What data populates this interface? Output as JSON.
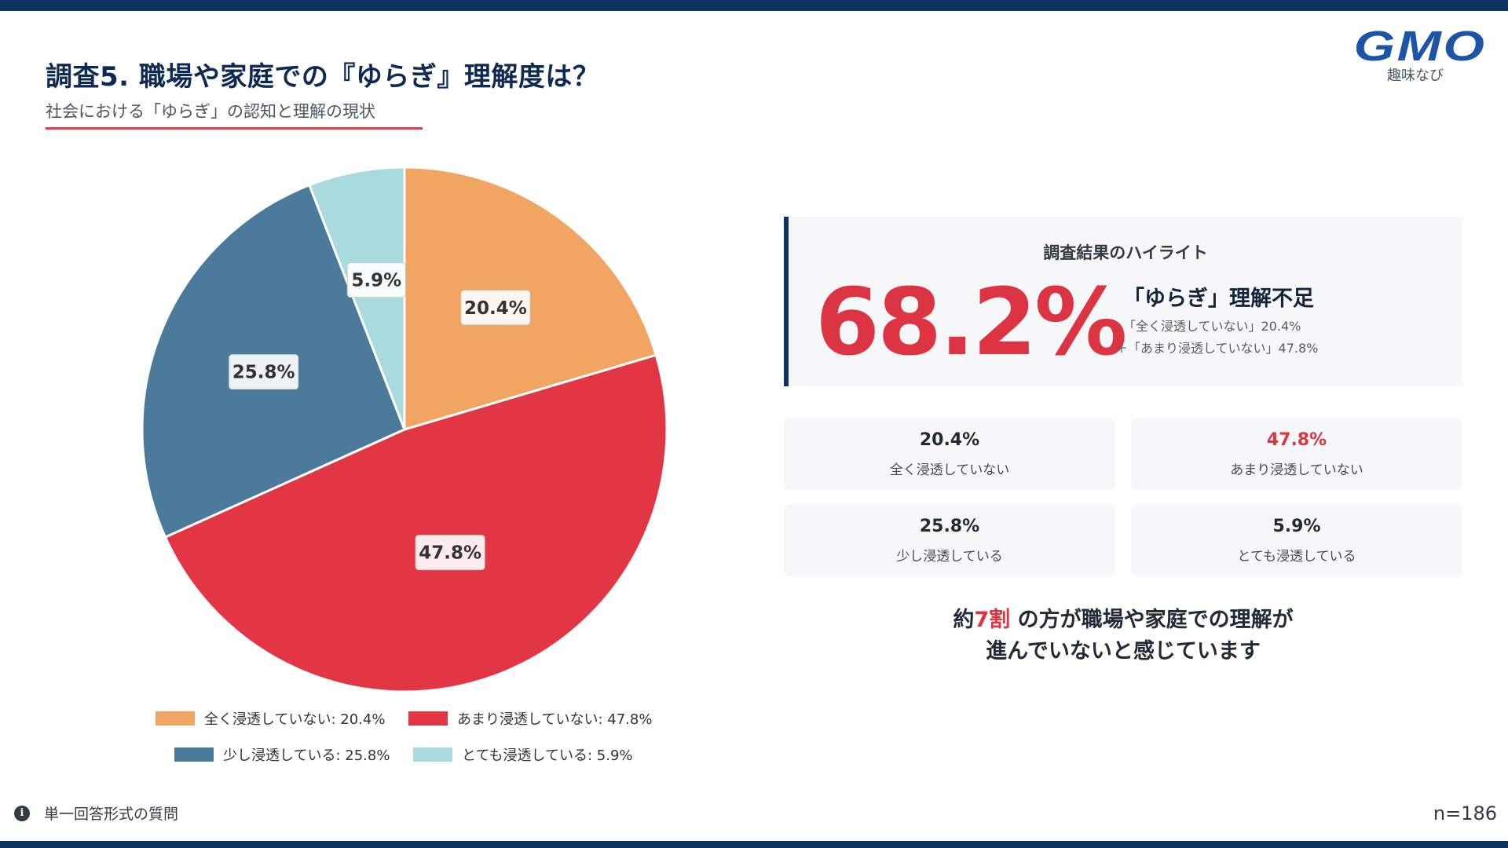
{
  "header": {
    "title": "調査5. 職場や家庭での『ゆらぎ』理解度は？",
    "subtitle": "社会における「ゆらぎ」の認知と理解の現状"
  },
  "logo": {
    "mark": "GMO",
    "sub": "趣味なび"
  },
  "colors": {
    "navy": "#0f3461",
    "accent_red": "#dd3444",
    "orange": "#f2a462",
    "red": "#e23644",
    "steel_blue": "#4b7a9a",
    "light_teal": "#a9dadd"
  },
  "chart_data": {
    "type": "pie",
    "title": "",
    "start": "12 o'clock, clockwise",
    "slices": [
      {
        "label": "全く浸透していない",
        "value": 20.4,
        "display": "20.4%",
        "color": "#f2a462",
        "legend": "全く浸透していない: 20.4%"
      },
      {
        "label": "あまり浸透していない",
        "value": 47.8,
        "display": "47.8%",
        "color": "#e23644",
        "legend": "あまり浸透していない: 47.8%"
      },
      {
        "label": "少し浸透している",
        "value": 25.8,
        "display": "25.8%",
        "color": "#4b7a9a",
        "legend": "少し浸透している: 25.8%"
      },
      {
        "label": "とても浸透している",
        "value": 5.9,
        "display": "5.9%",
        "color": "#a9dadd",
        "legend": "とても浸透している: 5.9%"
      }
    ],
    "legend_position": "bottom"
  },
  "highlight": {
    "heading": "調査結果のハイライト",
    "big_value": "68.2%",
    "side_title": "「ゆらぎ」理解不足",
    "side_line1": "「全く浸透していない」20.4%",
    "side_line2": "＋「あまり浸透していない」47.8%"
  },
  "stats": [
    {
      "value": "20.4%",
      "label": "全く浸透していない"
    },
    {
      "value": "47.8%",
      "label": "あまり浸透していない"
    },
    {
      "value": "25.8%",
      "label": "少し浸透している"
    },
    {
      "value": "5.9%",
      "label": "とても浸透している"
    }
  ],
  "conclusion": {
    "prefix": "約",
    "accent": "7割",
    "line1_rest": " の方が職場や家庭での理解が",
    "line2": "進んでいないと感じています"
  },
  "footer": {
    "note": "単一回答形式の質問",
    "sample_size": "n=186"
  }
}
